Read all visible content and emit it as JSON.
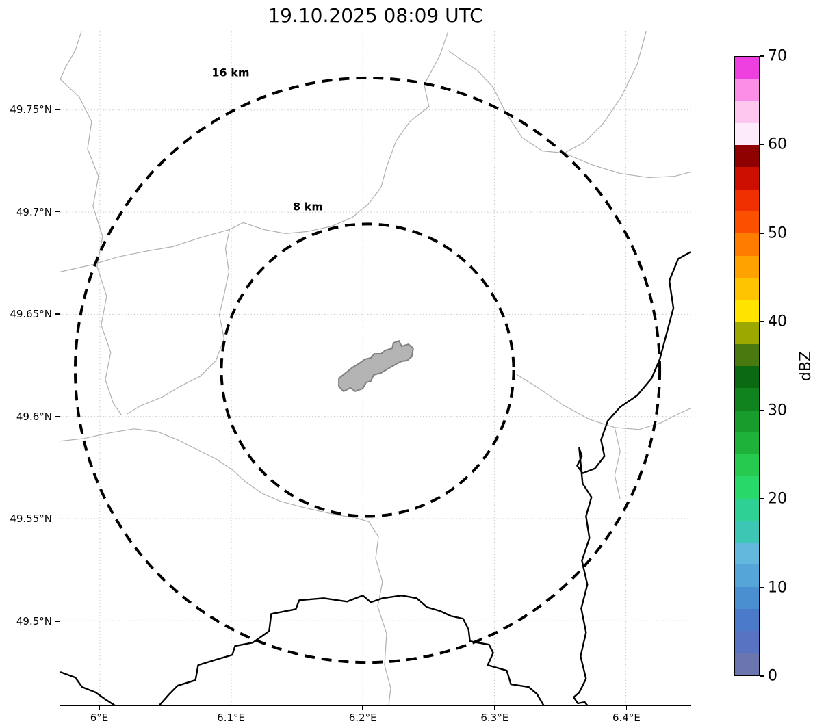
{
  "title": "19.10.2025 08:09 UTC",
  "axes": {
    "x": {
      "tick_labels": [
        "6°E",
        "6.1°E",
        "6.2°E",
        "6.3°E",
        "6.4°E"
      ]
    },
    "y": {
      "tick_labels": [
        "49.75°N",
        "49.7°N",
        "49.65°N",
        "49.6°N",
        "49.55°N",
        "49.5°N"
      ]
    }
  },
  "rings": [
    {
      "label": "8 km",
      "radius_km": 8
    },
    {
      "label": "16 km",
      "radius_km": 16
    }
  ],
  "colorbar": {
    "label": "dBZ",
    "min": 0,
    "max": 70,
    "tick_values": [
      0,
      10,
      20,
      30,
      40,
      50,
      60,
      70
    ],
    "band_colors_bottom_to_top": [
      "#6b76b1",
      "#5873c1",
      "#4a7ac9",
      "#4a8fd0",
      "#55a5d8",
      "#63b8de",
      "#3ec6b5",
      "#2ed096",
      "#28d96a",
      "#26ca4e",
      "#1fb23b",
      "#189c2b",
      "#10831e",
      "#0b6a11",
      "#4a7a0f",
      "#9aa800",
      "#ffe400",
      "#ffc400",
      "#ffa200",
      "#ff7c00",
      "#fb5000",
      "#f03000",
      "#cc0f00",
      "#8f0000",
      "#fdeafa",
      "#fec7f0",
      "#fb8fe8",
      "#ee3fe0"
    ]
  },
  "map_features": {
    "city_fill_color": "#b4b4b4",
    "boundary_line_color": "#b0b0b0",
    "river_and_border_color": "#000000"
  }
}
